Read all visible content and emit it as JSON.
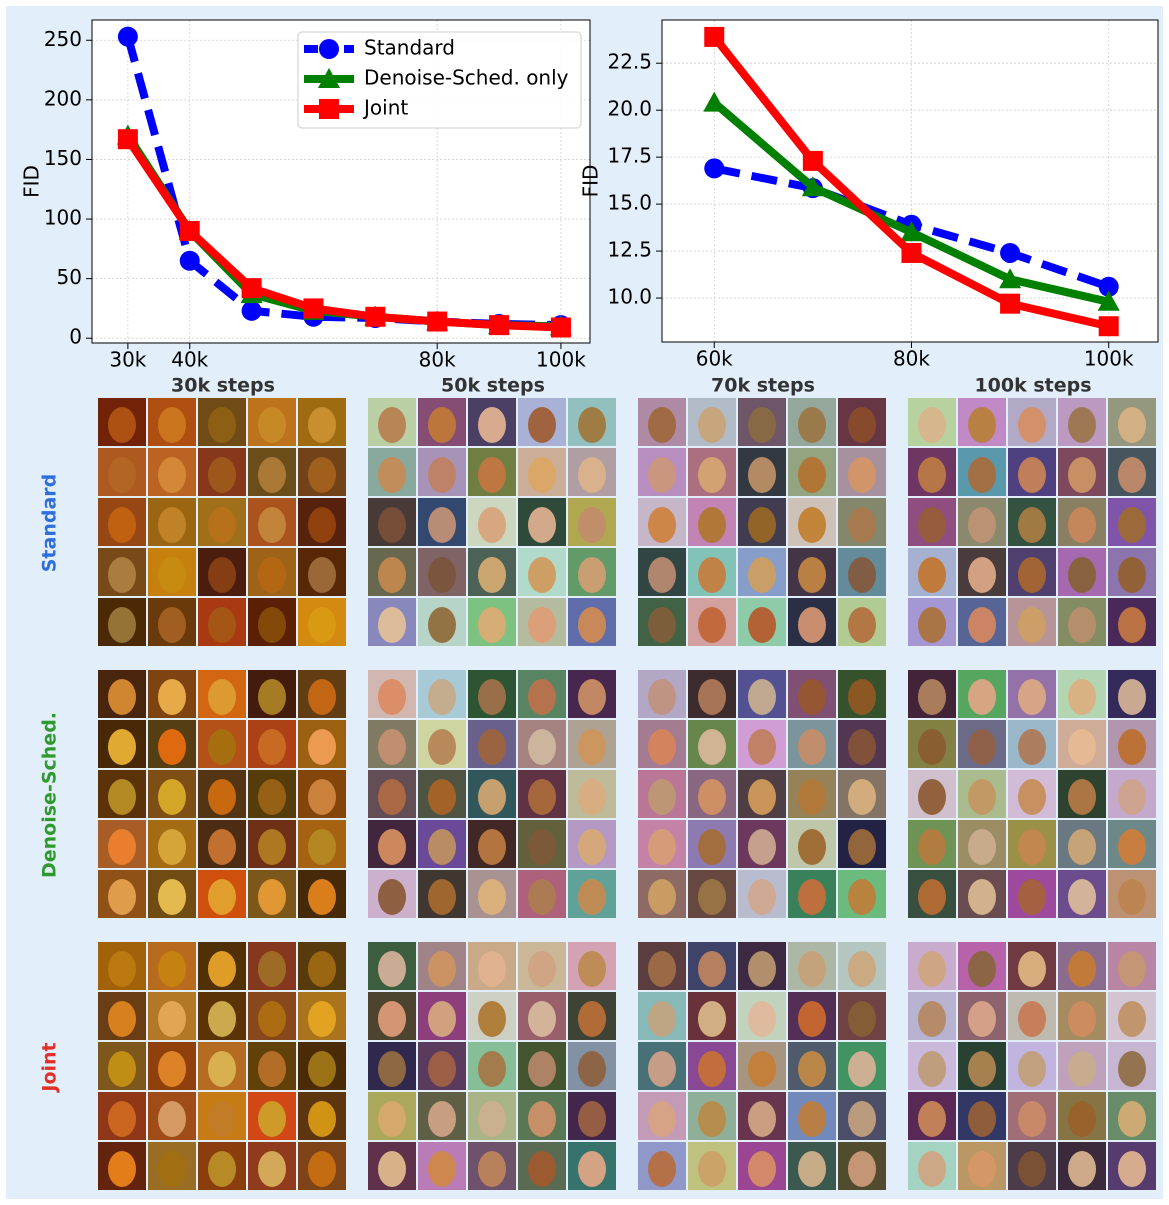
{
  "chart_data": [
    {
      "type": "line",
      "ylabel": "FID",
      "x": [
        30000,
        40000,
        50000,
        60000,
        70000,
        80000,
        90000,
        100000
      ],
      "xlim": [
        24200,
        104700
      ],
      "xticks": [
        {
          "value": 30000,
          "label": "30k"
        },
        {
          "value": 40000,
          "label": "40k"
        },
        {
          "value": 80000,
          "label": "80k"
        },
        {
          "value": 100000,
          "label": "100k"
        }
      ],
      "ylim": [
        -4,
        267
      ],
      "yticks": [
        0,
        50,
        100,
        150,
        200,
        250
      ],
      "grid": true,
      "legend": "upper center",
      "series": [
        {
          "name": "Standard",
          "color": "#0000ff",
          "marker": "circle",
          "linestyle": "dashed",
          "values": [
            253,
            65,
            23,
            18,
            17,
            14,
            12,
            11
          ]
        },
        {
          "name": "Denoise-Sched. only",
          "color": "#008000",
          "marker": "triangle",
          "linestyle": "solid",
          "values": [
            170,
            90,
            37,
            23,
            18,
            14,
            11,
            10
          ]
        },
        {
          "name": "Joint",
          "color": "#ff0000",
          "marker": "square",
          "linestyle": "solid",
          "values": [
            167,
            90,
            42,
            25,
            18,
            14,
            11,
            9
          ]
        }
      ]
    },
    {
      "type": "line",
      "ylabel": "FID",
      "x": [
        60000,
        70000,
        80000,
        90000,
        100000
      ],
      "xlim": [
        54700,
        105000
      ],
      "xticks": [
        {
          "value": 60000,
          "label": "60k"
        },
        {
          "value": 80000,
          "label": "80k"
        },
        {
          "value": 100000,
          "label": "100k"
        }
      ],
      "ylim": [
        7.66,
        24.8
      ],
      "yticks": [
        {
          "value": 10,
          "label": "10.0"
        },
        12.5,
        {
          "value": 15,
          "label": "15.0"
        },
        17.5,
        {
          "value": 20,
          "label": "20.0"
        },
        22.5
      ],
      "grid": true,
      "series": [
        {
          "name": "Standard",
          "color": "#0000ff",
          "marker": "circle",
          "linestyle": "dashed",
          "values": [
            16.9,
            15.85,
            13.9,
            12.4,
            10.6
          ]
        },
        {
          "name": "Denoise-Sched. only",
          "color": "#008000",
          "marker": "triangle",
          "linestyle": "solid",
          "values": [
            20.4,
            15.9,
            13.5,
            11.0,
            9.8
          ]
        },
        {
          "name": "Joint",
          "color": "#ff0000",
          "marker": "square",
          "linestyle": "solid",
          "values": [
            23.9,
            17.3,
            12.4,
            9.7,
            8.5
          ]
        }
      ]
    }
  ],
  "image_grid": {
    "columns": [
      "30k steps",
      "50k steps",
      "70k steps",
      "100k steps"
    ],
    "rows": [
      {
        "label": "Standard",
        "color": "#2f6fdc"
      },
      {
        "label": "Denoise-Sched.",
        "color": "#2e9a2e"
      },
      {
        "label": "Joint",
        "color": "#e0302a"
      }
    ]
  }
}
